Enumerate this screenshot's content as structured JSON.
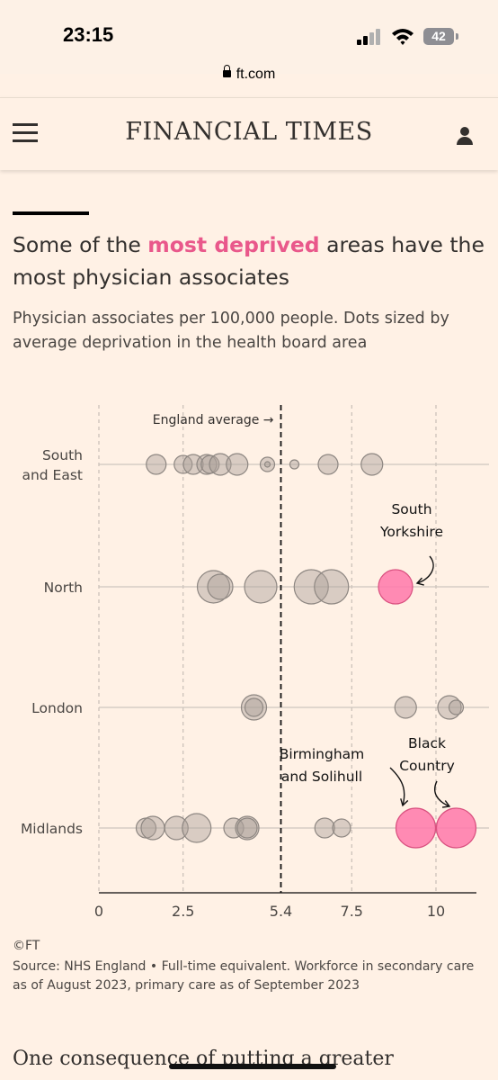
{
  "status": {
    "time": "23:15",
    "battery": "42",
    "url": "ft.com"
  },
  "header": {
    "logo": "FINANCIAL TIMES"
  },
  "article": {
    "title_pre": "Some of the ",
    "title_highlight": "most deprived",
    "title_post": " areas have the most physician associates",
    "subtitle": "Physician associates per 100,000 people. Dots sized by average deprivation in the health board area",
    "credit": "©FT",
    "source": "Source: NHS England • Full-time equivalent. Workforce in secondary care as of August 2023, primary care as of September 2023",
    "next_paragraph": "One consequence of putting a greater"
  },
  "colors": {
    "highlight": "#e9588b",
    "dot": "#c2b9b2",
    "dot_stroke": "#8e8782",
    "background": "#fff1e5"
  },
  "chart_data": {
    "type": "scatter",
    "title": "Some of the most deprived areas have the most physician associates",
    "subtitle": "Physician associates per 100,000 people. Dots sized by average deprivation in the health board area",
    "xlim": [
      0,
      11.2
    ],
    "x_ticks": [
      0,
      2.5,
      5.4,
      7.5,
      10
    ],
    "x_tick_labels": [
      "0",
      "2.5",
      "5.4",
      "7.5",
      "10"
    ],
    "reference_line": {
      "x": 5.4,
      "label": "England average →"
    },
    "categories": [
      {
        "label_lines": [
          "South",
          "and East"
        ],
        "name": "South and East"
      },
      {
        "label_lines": [
          "North"
        ],
        "name": "North"
      },
      {
        "label_lines": [
          "London"
        ],
        "name": "London"
      },
      {
        "label_lines": [
          "Midlands"
        ],
        "name": "Midlands"
      }
    ],
    "series": [
      {
        "name": "South and East",
        "points": [
          {
            "x": 1.7,
            "size": 11,
            "highlight": false
          },
          {
            "x": 2.5,
            "size": 10,
            "highlight": false
          },
          {
            "x": 2.8,
            "size": 11,
            "highlight": false
          },
          {
            "x": 3.2,
            "size": 11,
            "highlight": false
          },
          {
            "x": 3.3,
            "size": 10,
            "highlight": false
          },
          {
            "x": 3.6,
            "size": 12,
            "highlight": false
          },
          {
            "x": 4.1,
            "size": 12,
            "highlight": false
          },
          {
            "x": 5.0,
            "size": 8,
            "highlight": false
          },
          {
            "x": 5.0,
            "size": 3,
            "highlight": false
          },
          {
            "x": 5.8,
            "size": 5,
            "highlight": false
          },
          {
            "x": 6.8,
            "size": 11,
            "highlight": false
          },
          {
            "x": 8.1,
            "size": 12,
            "highlight": false
          }
        ]
      },
      {
        "name": "North",
        "points": [
          {
            "x": 3.4,
            "size": 18,
            "highlight": false
          },
          {
            "x": 3.6,
            "size": 14,
            "highlight": false
          },
          {
            "x": 4.8,
            "size": 18,
            "highlight": false
          },
          {
            "x": 6.3,
            "size": 19,
            "highlight": false
          },
          {
            "x": 6.9,
            "size": 19,
            "highlight": false
          },
          {
            "x": 8.8,
            "size": 19,
            "highlight": true
          }
        ]
      },
      {
        "name": "London",
        "points": [
          {
            "x": 4.6,
            "size": 14,
            "highlight": false
          },
          {
            "x": 4.6,
            "size": 10,
            "highlight": false
          },
          {
            "x": 9.1,
            "size": 12,
            "highlight": false
          },
          {
            "x": 10.4,
            "size": 13,
            "highlight": false
          },
          {
            "x": 10.6,
            "size": 8,
            "highlight": false
          }
        ]
      },
      {
        "name": "Midlands",
        "points": [
          {
            "x": 1.4,
            "size": 11,
            "highlight": false
          },
          {
            "x": 1.6,
            "size": 13,
            "highlight": false
          },
          {
            "x": 2.3,
            "size": 13,
            "highlight": false
          },
          {
            "x": 2.9,
            "size": 16,
            "highlight": false
          },
          {
            "x": 4.0,
            "size": 11,
            "highlight": false
          },
          {
            "x": 4.4,
            "size": 13,
            "highlight": false
          },
          {
            "x": 4.4,
            "size": 11,
            "highlight": false
          },
          {
            "x": 6.7,
            "size": 11,
            "highlight": false
          },
          {
            "x": 7.2,
            "size": 10,
            "highlight": false
          },
          {
            "x": 9.4,
            "size": 22,
            "highlight": true
          },
          {
            "x": 10.6,
            "size": 22,
            "highlight": true
          }
        ]
      }
    ],
    "annotations": [
      {
        "lines": [
          "South",
          "Yorkshire"
        ],
        "series": "North",
        "target_x": 8.8
      },
      {
        "lines": [
          "Birmingham",
          "and Solihull"
        ],
        "series": "Midlands",
        "target_x": 9.4
      },
      {
        "lines": [
          "Black",
          "Country"
        ],
        "series": "Midlands",
        "target_x": 10.6
      }
    ],
    "grid": true
  }
}
